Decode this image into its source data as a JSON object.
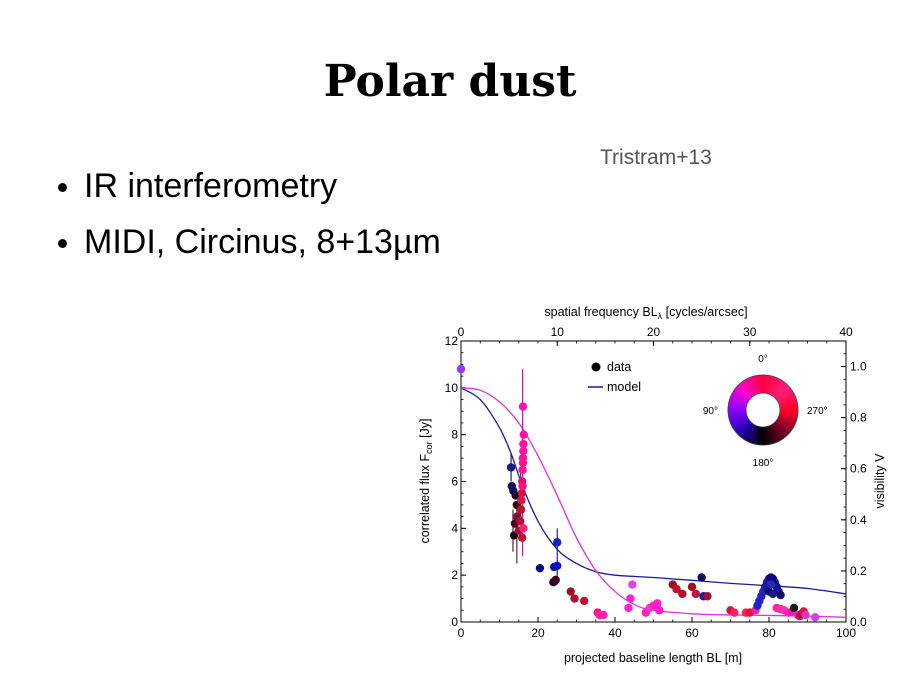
{
  "slide": {
    "title": "Polar dust",
    "bullets": [
      "IR interferometry",
      "MIDI, Circinus, 8+13µm"
    ],
    "citation": "Tristram+13"
  },
  "colors": {
    "model_blue": "#1a1aa0",
    "model_magenta": "#e030e0",
    "ring": [
      "#ff0040",
      "#ff00cc",
      "#8000ff",
      "#0000a0",
      "#000000",
      "#a00030"
    ]
  },
  "chart_data": {
    "type": "scatter",
    "xlabel": "projected baseline length BL [m]",
    "ylabel_main": "correlated flux F",
    "ylabel_sub": "cor",
    "ylabel_unit": " [Jy]",
    "x2label_main": "spatial frequency BL",
    "x2label_sub": "λ",
    "x2label_unit": " [cycles/arcsec]",
    "y2label": "visibility V",
    "xlim": [
      0,
      100
    ],
    "ylim": [
      0,
      12
    ],
    "x2lim": [
      0,
      40
    ],
    "y2lim": [
      0.0,
      1.1
    ],
    "xticks": [
      "0",
      "20",
      "40",
      "60",
      "80",
      "100"
    ],
    "yticks": [
      "0",
      "2",
      "4",
      "6",
      "8",
      "10",
      "12"
    ],
    "x2ticks": [
      "0",
      "10",
      "20",
      "30",
      "40"
    ],
    "y2ticks": [
      "0.0",
      "0.2",
      "0.4",
      "0.6",
      "0.8",
      "1.0"
    ],
    "legend": {
      "data": "data",
      "model": "model"
    },
    "color_wheel_labels": {
      "top": "0°",
      "left": "90°",
      "right": "270°",
      "bottom": "180°"
    },
    "models": [
      {
        "color": "#1a1aa0",
        "points": [
          [
            0,
            10.0
          ],
          [
            5,
            9.5
          ],
          [
            10,
            8.3
          ],
          [
            13,
            7.2
          ],
          [
            16,
            5.8
          ],
          [
            20,
            4.3
          ],
          [
            25,
            3.1
          ],
          [
            30,
            2.5
          ],
          [
            35,
            2.15
          ],
          [
            40,
            2.0
          ],
          [
            50,
            1.9
          ],
          [
            60,
            1.78
          ],
          [
            70,
            1.65
          ],
          [
            80,
            1.55
          ],
          [
            90,
            1.43
          ],
          [
            100,
            1.2
          ]
        ]
      },
      {
        "color": "#e030e0",
        "points": [
          [
            0,
            10.0
          ],
          [
            5,
            9.9
          ],
          [
            10,
            9.4
          ],
          [
            15,
            8.5
          ],
          [
            20,
            7.1
          ],
          [
            25,
            5.4
          ],
          [
            30,
            3.6
          ],
          [
            35,
            2.2
          ],
          [
            40,
            1.3
          ],
          [
            45,
            0.75
          ],
          [
            50,
            0.5
          ],
          [
            60,
            0.35
          ],
          [
            70,
            0.3
          ],
          [
            80,
            0.28
          ],
          [
            90,
            0.25
          ],
          [
            100,
            0.2
          ]
        ]
      }
    ],
    "errorbars": [
      {
        "x": 16,
        "y0": 2.8,
        "y1": 10.8,
        "color": "#e0108a"
      },
      {
        "x": 13.5,
        "y0": 3.0,
        "y1": 4.8,
        "color": "#552233"
      },
      {
        "x": 14.5,
        "y0": 2.5,
        "y1": 5.0,
        "color": "#662233"
      },
      {
        "x": 13,
        "y0": 6.0,
        "y1": 7.2,
        "color": "#1a1a7a"
      },
      {
        "x": 25,
        "y0": 1.6,
        "y1": 4.0,
        "color": "#2020b0"
      },
      {
        "x": 15.5,
        "y0": 4.2,
        "y1": 6.4,
        "color": "#a01040"
      }
    ],
    "series": [
      {
        "points": [
          {
            "x": 0,
            "y": 10.8,
            "c": "#9b30ff"
          },
          {
            "x": 13,
            "y": 6.6,
            "c": "#1a1a7a"
          },
          {
            "x": 13.2,
            "y": 5.8,
            "c": "#0a0a5a"
          },
          {
            "x": 13.6,
            "y": 5.6,
            "c": "#101060"
          },
          {
            "x": 14.2,
            "y": 5.4,
            "c": "#200020"
          },
          {
            "x": 14.5,
            "y": 5.0,
            "c": "#330011"
          },
          {
            "x": 14.0,
            "y": 4.2,
            "c": "#550022"
          },
          {
            "x": 13.8,
            "y": 3.7,
            "c": "#100010"
          },
          {
            "x": 14.6,
            "y": 4.5,
            "c": "#7a1030"
          },
          {
            "x": 15.0,
            "y": 3.9,
            "c": "#a01040"
          },
          {
            "x": 15.4,
            "y": 4.3,
            "c": "#b01038"
          },
          {
            "x": 15.6,
            "y": 4.8,
            "c": "#c01030"
          },
          {
            "x": 15.8,
            "y": 5.5,
            "c": "#d01048"
          },
          {
            "x": 15.9,
            "y": 6.0,
            "c": "#e01070"
          },
          {
            "x": 16.0,
            "y": 6.5,
            "c": "#ff1090"
          },
          {
            "x": 16.1,
            "y": 7.0,
            "c": "#ff1090"
          },
          {
            "x": 16.2,
            "y": 7.6,
            "c": "#ff10a0"
          },
          {
            "x": 16.3,
            "y": 8.0,
            "c": "#ff10a8"
          },
          {
            "x": 16.1,
            "y": 9.2,
            "c": "#ff10b0"
          },
          {
            "x": 15.7,
            "y": 5.2,
            "c": "#e01050"
          },
          {
            "x": 15.9,
            "y": 3.6,
            "c": "#c01030"
          },
          {
            "x": 16.2,
            "y": 4.0,
            "c": "#ff2070"
          },
          {
            "x": 16.0,
            "y": 5.8,
            "c": "#ff1080"
          },
          {
            "x": 16.1,
            "y": 6.8,
            "c": "#ff1098"
          },
          {
            "x": 16.2,
            "y": 7.3,
            "c": "#ff10a0"
          },
          {
            "x": 20.5,
            "y": 2.3,
            "c": "#0a0a80"
          },
          {
            "x": 24.0,
            "y": 1.7,
            "c": "#300030"
          },
          {
            "x": 24.6,
            "y": 1.8,
            "c": "#400020"
          },
          {
            "x": 24.2,
            "y": 2.35,
            "c": "#1010a0"
          },
          {
            "x": 25.0,
            "y": 2.4,
            "c": "#1010c0"
          },
          {
            "x": 25.0,
            "y": 3.4,
            "c": "#2020c0"
          },
          {
            "x": 28.5,
            "y": 1.3,
            "c": "#a01020"
          },
          {
            "x": 29.5,
            "y": 1.0,
            "c": "#b01030"
          },
          {
            "x": 32.0,
            "y": 0.9,
            "c": "#c01030"
          },
          {
            "x": 35.5,
            "y": 0.4,
            "c": "#ff1080"
          },
          {
            "x": 36.0,
            "y": 0.3,
            "c": "#ff20a0"
          },
          {
            "x": 37.0,
            "y": 0.3,
            "c": "#ff20b0"
          },
          {
            "x": 43.5,
            "y": 0.6,
            "c": "#ff20d0"
          },
          {
            "x": 44.0,
            "y": 1.0,
            "c": "#ff20d0"
          },
          {
            "x": 44.5,
            "y": 1.6,
            "c": "#e040f0"
          },
          {
            "x": 48.0,
            "y": 0.4,
            "c": "#ff20c0"
          },
          {
            "x": 49.0,
            "y": 0.6,
            "c": "#ff30d0"
          },
          {
            "x": 50.0,
            "y": 0.7,
            "c": "#ff20c0"
          },
          {
            "x": 51.0,
            "y": 0.8,
            "c": "#ff20d0"
          },
          {
            "x": 51.5,
            "y": 0.5,
            "c": "#ff20c8"
          },
          {
            "x": 55.0,
            "y": 1.6,
            "c": "#a01020"
          },
          {
            "x": 56.0,
            "y": 1.4,
            "c": "#c01030"
          },
          {
            "x": 57.5,
            "y": 1.2,
            "c": "#b01030"
          },
          {
            "x": 60.0,
            "y": 1.5,
            "c": "#a01020"
          },
          {
            "x": 61.0,
            "y": 1.2,
            "c": "#c01040"
          },
          {
            "x": 62.5,
            "y": 1.9,
            "c": "#10106a"
          },
          {
            "x": 63.0,
            "y": 1.1,
            "c": "#1a1aa0"
          },
          {
            "x": 64.0,
            "y": 1.1,
            "c": "#a01030"
          },
          {
            "x": 70.0,
            "y": 0.5,
            "c": "#d01048"
          },
          {
            "x": 71.0,
            "y": 0.4,
            "c": "#ff2060"
          },
          {
            "x": 74.0,
            "y": 0.4,
            "c": "#ff2050"
          },
          {
            "x": 75.0,
            "y": 0.4,
            "c": "#e01040"
          },
          {
            "x": 76.5,
            "y": 0.5,
            "c": "#ff20a0"
          },
          {
            "x": 77.0,
            "y": 0.7,
            "c": "#2020d0"
          },
          {
            "x": 77.5,
            "y": 0.9,
            "c": "#2020d0"
          },
          {
            "x": 78.0,
            "y": 1.1,
            "c": "#2020c0"
          },
          {
            "x": 78.5,
            "y": 1.3,
            "c": "#2020c0"
          },
          {
            "x": 79.0,
            "y": 1.5,
            "c": "#1a1aa0"
          },
          {
            "x": 79.5,
            "y": 1.7,
            "c": "#1a1aa0"
          },
          {
            "x": 80.0,
            "y": 1.85,
            "c": "#1a1aa0"
          },
          {
            "x": 80.5,
            "y": 1.9,
            "c": "#0a0a80"
          },
          {
            "x": 81.0,
            "y": 1.85,
            "c": "#0a0a80"
          },
          {
            "x": 81.5,
            "y": 1.7,
            "c": "#0a0a80"
          },
          {
            "x": 82.0,
            "y": 1.5,
            "c": "#101090"
          },
          {
            "x": 82.5,
            "y": 1.3,
            "c": "#101090"
          },
          {
            "x": 83.0,
            "y": 1.15,
            "c": "#101060"
          },
          {
            "x": 80.0,
            "y": 1.3,
            "c": "#0a0a60"
          },
          {
            "x": 80.5,
            "y": 1.6,
            "c": "#2a2ab0"
          },
          {
            "x": 81.0,
            "y": 1.2,
            "c": "#1a1a80"
          },
          {
            "x": 82.0,
            "y": 0.6,
            "c": "#ff20a0"
          },
          {
            "x": 83.0,
            "y": 0.55,
            "c": "#ff30a0"
          },
          {
            "x": 84.0,
            "y": 0.5,
            "c": "#ff30b0"
          },
          {
            "x": 85.0,
            "y": 0.4,
            "c": "#ff20c0"
          },
          {
            "x": 86.0,
            "y": 0.45,
            "c": "#e020a0"
          },
          {
            "x": 86.5,
            "y": 0.6,
            "c": "#1a1a1a"
          },
          {
            "x": 87.5,
            "y": 0.3,
            "c": "#ff20b0"
          },
          {
            "x": 88.0,
            "y": 0.25,
            "c": "#c01060"
          },
          {
            "x": 88.5,
            "y": 0.35,
            "c": "#a01030"
          },
          {
            "x": 89.0,
            "y": 0.45,
            "c": "#e01048"
          },
          {
            "x": 89.5,
            "y": 0.3,
            "c": "#e030c0"
          },
          {
            "x": 92.0,
            "y": 0.2,
            "c": "#d040f0"
          }
        ]
      }
    ]
  }
}
